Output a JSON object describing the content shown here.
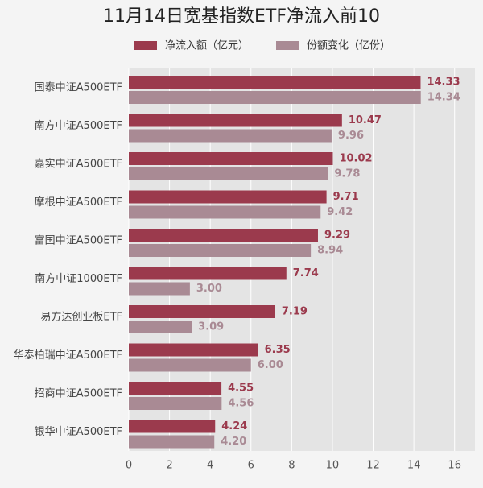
{
  "chart_data": {
    "type": "bar",
    "orientation": "horizontal",
    "title": "11月14日宽基指数ETF净流入前10",
    "categories": [
      "国泰中证A500ETF",
      "南方中证A500ETF",
      "嘉实中证A500ETF",
      "摩根中证A500ETF",
      "富国中证A500ETF",
      "南方中证1000ETF",
      "易方达创业板ETF",
      "华泰柏瑞中证A500ETF",
      "招商中证A500ETF",
      "银华中证A500ETF"
    ],
    "series": [
      {
        "name": "净流入额（亿元）",
        "color": "#9b3a4d",
        "values": [
          14.33,
          10.47,
          10.02,
          9.71,
          9.29,
          7.74,
          7.19,
          6.35,
          4.55,
          4.24
        ],
        "value_labels": [
          "14.33",
          "10.47",
          "10.02",
          "9.71",
          "9.29",
          "7.74",
          "7.19",
          "6.35",
          "4.55",
          "4.24"
        ]
      },
      {
        "name": "份额变化（亿份）",
        "color": "#a98a94",
        "values": [
          14.34,
          9.96,
          9.78,
          9.42,
          8.94,
          3.0,
          3.09,
          6.0,
          4.56,
          4.2
        ],
        "value_labels": [
          "14.34",
          "9.96",
          "9.78",
          "9.42",
          "8.94",
          "3.00",
          "3.09",
          "6.00",
          "4.56",
          "4.20"
        ]
      }
    ],
    "xlim": [
      0,
      17
    ],
    "xticks": [
      0,
      2,
      4,
      6,
      8,
      10,
      12,
      14,
      16
    ],
    "grid": true
  }
}
